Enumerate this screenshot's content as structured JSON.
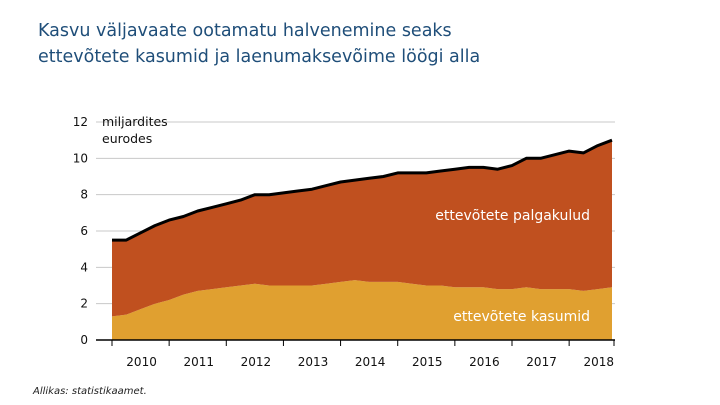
{
  "title_lines": [
    "Kasvu väljavaate ootamatu halvenemine seaks",
    "ettevõtete kasumid ja laenumaksevõime löögi alla"
  ],
  "source": "Allikas: statistikaamet.",
  "chart_data": {
    "type": "area",
    "stacked": true,
    "ylabel_lines": [
      "miljardites",
      "eurodes"
    ],
    "ylim": [
      0,
      12
    ],
    "yticks": [
      "0",
      "2",
      "4",
      "6",
      "8",
      "10",
      "12"
    ],
    "xticks": [
      "2010",
      "2011",
      "2012",
      "2013",
      "2014",
      "2015",
      "2016",
      "2017",
      "2018"
    ],
    "grid": true,
    "x": [
      "2010Q1",
      "2010Q2",
      "2010Q3",
      "2010Q4",
      "2011Q1",
      "2011Q2",
      "2011Q3",
      "2011Q4",
      "2012Q1",
      "2012Q2",
      "2012Q3",
      "2012Q4",
      "2013Q1",
      "2013Q2",
      "2013Q3",
      "2013Q4",
      "2014Q1",
      "2014Q2",
      "2014Q3",
      "2014Q4",
      "2015Q1",
      "2015Q2",
      "2015Q3",
      "2015Q4",
      "2016Q1",
      "2016Q2",
      "2016Q3",
      "2016Q4",
      "2017Q1",
      "2017Q2",
      "2017Q3",
      "2017Q4",
      "2018Q1",
      "2018Q2",
      "2018Q3",
      "2018Q4"
    ],
    "series": [
      {
        "name": "ettevõtete kasumid",
        "color": "#e0a030",
        "values": [
          1.3,
          1.4,
          1.7,
          2.0,
          2.2,
          2.5,
          2.7,
          2.8,
          2.9,
          3.0,
          3.1,
          3.0,
          3.0,
          3.0,
          3.0,
          3.1,
          3.2,
          3.3,
          3.2,
          3.2,
          3.2,
          3.1,
          3.0,
          3.0,
          2.9,
          2.9,
          2.9,
          2.8,
          2.8,
          2.9,
          2.8,
          2.8,
          2.8,
          2.7,
          2.8,
          2.9
        ]
      },
      {
        "name": "ettevõtete palgakulud",
        "color": "#c0501f",
        "values": [
          4.2,
          4.1,
          4.2,
          4.3,
          4.4,
          4.3,
          4.4,
          4.5,
          4.6,
          4.7,
          4.9,
          5.0,
          5.1,
          5.2,
          5.3,
          5.4,
          5.5,
          5.5,
          5.7,
          5.8,
          6.0,
          6.1,
          6.2,
          6.3,
          6.5,
          6.6,
          6.6,
          6.6,
          6.8,
          7.1,
          7.2,
          7.4,
          7.6,
          7.6,
          7.9,
          8.1
        ]
      }
    ],
    "total_line_color": "#000000"
  }
}
